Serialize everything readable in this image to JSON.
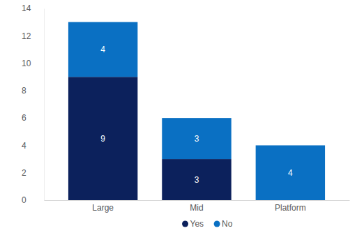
{
  "chart_data": {
    "type": "bar",
    "stacked": true,
    "data_labels": true,
    "grid": false,
    "legend": "bottom",
    "categories": [
      "Large",
      "Mid",
      "Platform"
    ],
    "series": [
      {
        "name": "Yes",
        "color": "#0c215c",
        "values": [
          9,
          3,
          null
        ]
      },
      {
        "name": "No",
        "color": "#0a70c3",
        "values": [
          4,
          3,
          4
        ]
      }
    ],
    "ylim": [
      0,
      14
    ],
    "yticks": [
      0,
      2,
      4,
      6,
      8,
      10,
      12,
      14
    ]
  }
}
